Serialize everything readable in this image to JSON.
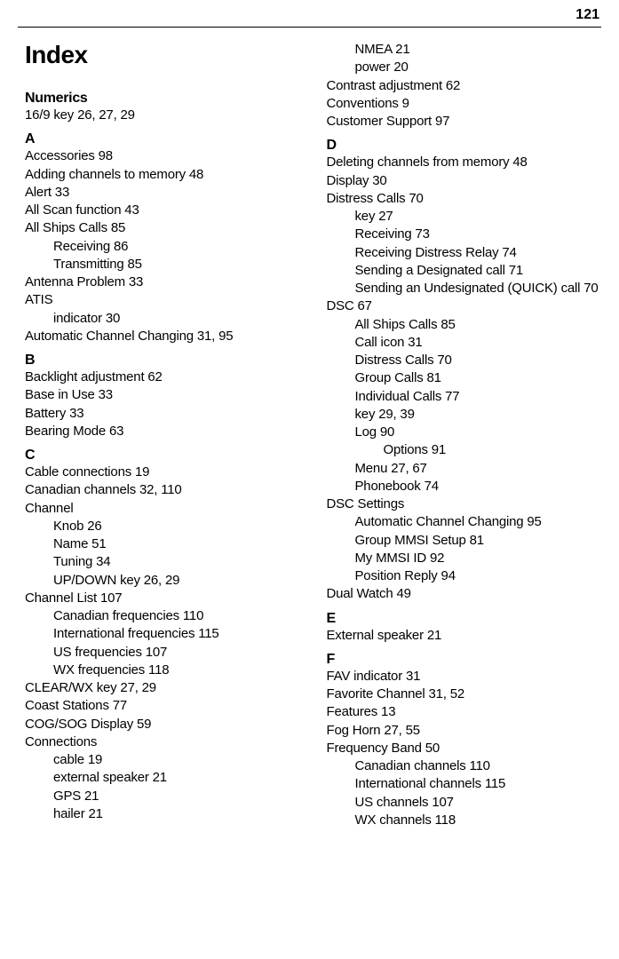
{
  "page_number": "121",
  "title": "Index",
  "left_column": [
    {
      "type": "title",
      "text": "Index"
    },
    {
      "type": "section",
      "text": "Numerics"
    },
    {
      "type": "entry",
      "indent": 0,
      "text": "16/9 key 26, 27, 29"
    },
    {
      "type": "section",
      "text": "A"
    },
    {
      "type": "entry",
      "indent": 0,
      "text": "Accessories 98"
    },
    {
      "type": "entry",
      "indent": 0,
      "text": "Adding channels to memory 48"
    },
    {
      "type": "entry",
      "indent": 0,
      "text": "Alert 33"
    },
    {
      "type": "entry",
      "indent": 0,
      "text": "All Scan function 43"
    },
    {
      "type": "entry",
      "indent": 0,
      "text": "All Ships Calls 85"
    },
    {
      "type": "entry",
      "indent": 1,
      "text": "Receiving 86"
    },
    {
      "type": "entry",
      "indent": 1,
      "text": "Transmitting 85"
    },
    {
      "type": "entry",
      "indent": 0,
      "text": "Antenna Problem 33"
    },
    {
      "type": "entry",
      "indent": 0,
      "text": "ATIS"
    },
    {
      "type": "entry",
      "indent": 1,
      "text": "indicator 30"
    },
    {
      "type": "entry",
      "indent": 0,
      "text": "Automatic Channel Changing 31, 95"
    },
    {
      "type": "section",
      "text": "B"
    },
    {
      "type": "entry",
      "indent": 0,
      "text": "Backlight adjustment 62"
    },
    {
      "type": "entry",
      "indent": 0,
      "text": "Base in Use 33"
    },
    {
      "type": "entry",
      "indent": 0,
      "text": "Battery 33"
    },
    {
      "type": "entry",
      "indent": 0,
      "text": "Bearing Mode 63"
    },
    {
      "type": "section",
      "text": "C"
    },
    {
      "type": "entry",
      "indent": 0,
      "text": "Cable connections 19"
    },
    {
      "type": "entry",
      "indent": 0,
      "text": "Canadian channels 32, 110"
    },
    {
      "type": "entry",
      "indent": 0,
      "text": "Channel"
    },
    {
      "type": "entry",
      "indent": 1,
      "text": "Knob 26"
    },
    {
      "type": "entry",
      "indent": 1,
      "text": "Name 51"
    },
    {
      "type": "entry",
      "indent": 1,
      "text": "Tuning 34"
    },
    {
      "type": "entry",
      "indent": 1,
      "text": "UP/DOWN key 26, 29"
    },
    {
      "type": "entry",
      "indent": 0,
      "text": "Channel List 107"
    },
    {
      "type": "entry",
      "indent": 1,
      "text": "Canadian frequencies 110"
    },
    {
      "type": "entry",
      "indent": 1,
      "text": "International frequencies 115"
    },
    {
      "type": "entry",
      "indent": 1,
      "text": "US frequencies 107"
    },
    {
      "type": "entry",
      "indent": 1,
      "text": "WX frequencies 118"
    },
    {
      "type": "entry",
      "indent": 0,
      "text": "CLEAR/WX key 27, 29"
    },
    {
      "type": "entry",
      "indent": 0,
      "text": "Coast Stations 77"
    },
    {
      "type": "entry",
      "indent": 0,
      "text": "COG/SOG Display 59"
    },
    {
      "type": "entry",
      "indent": 0,
      "text": "Connections"
    },
    {
      "type": "entry",
      "indent": 1,
      "text": "cable 19"
    },
    {
      "type": "entry",
      "indent": 1,
      "text": "external speaker 21"
    },
    {
      "type": "entry",
      "indent": 1,
      "text": "GPS 21"
    },
    {
      "type": "entry",
      "indent": 1,
      "text": "hailer 21"
    }
  ],
  "right_column": [
    {
      "type": "entry",
      "indent": 1,
      "text": "NMEA 21"
    },
    {
      "type": "entry",
      "indent": 1,
      "text": "power 20"
    },
    {
      "type": "entry",
      "indent": 0,
      "text": "Contrast adjustment 62"
    },
    {
      "type": "entry",
      "indent": 0,
      "text": "Conventions 9"
    },
    {
      "type": "entry",
      "indent": 0,
      "text": "Customer Support 97"
    },
    {
      "type": "section",
      "text": "D"
    },
    {
      "type": "entry",
      "indent": 0,
      "text": "Deleting channels from memory 48"
    },
    {
      "type": "entry",
      "indent": 0,
      "text": "Display 30"
    },
    {
      "type": "entry",
      "indent": 0,
      "text": "Distress Calls 70"
    },
    {
      "type": "entry",
      "indent": 1,
      "text": "key 27"
    },
    {
      "type": "entry",
      "indent": 1,
      "text": "Receiving 73"
    },
    {
      "type": "entry",
      "indent": 1,
      "text": "Receiving Distress Relay 74"
    },
    {
      "type": "entry",
      "indent": 1,
      "text": "Sending a Designated call 71"
    },
    {
      "type": "entry",
      "indent": 1,
      "text": "Sending an Undesignated (QUICK) call 70"
    },
    {
      "type": "entry",
      "indent": 0,
      "text": "DSC 67"
    },
    {
      "type": "entry",
      "indent": 1,
      "text": "All Ships Calls 85"
    },
    {
      "type": "entry",
      "indent": 1,
      "text": "Call icon 31"
    },
    {
      "type": "entry",
      "indent": 1,
      "text": "Distress Calls 70"
    },
    {
      "type": "entry",
      "indent": 1,
      "text": "Group Calls 81"
    },
    {
      "type": "entry",
      "indent": 1,
      "text": "Individual Calls 77"
    },
    {
      "type": "entry",
      "indent": 1,
      "text": "key 29, 39"
    },
    {
      "type": "entry",
      "indent": 1,
      "text": "Log 90"
    },
    {
      "type": "entry",
      "indent": 2,
      "text": "Options 91"
    },
    {
      "type": "entry",
      "indent": 1,
      "text": "Menu 27, 67"
    },
    {
      "type": "entry",
      "indent": 1,
      "text": "Phonebook 74"
    },
    {
      "type": "entry",
      "indent": 0,
      "text": "DSC Settings"
    },
    {
      "type": "entry",
      "indent": 1,
      "text": "Automatic Channel Changing 95"
    },
    {
      "type": "entry",
      "indent": 1,
      "text": "Group MMSI Setup 81"
    },
    {
      "type": "entry",
      "indent": 1,
      "text": "My MMSI ID 92"
    },
    {
      "type": "entry",
      "indent": 1,
      "text": "Position Reply 94"
    },
    {
      "type": "entry",
      "indent": 0,
      "text": "Dual Watch 49"
    },
    {
      "type": "section",
      "text": "E"
    },
    {
      "type": "entry",
      "indent": 0,
      "text": "External speaker 21"
    },
    {
      "type": "section",
      "text": "F"
    },
    {
      "type": "entry",
      "indent": 0,
      "text": "FAV indicator 31"
    },
    {
      "type": "entry",
      "indent": 0,
      "text": "Favorite Channel 31, 52"
    },
    {
      "type": "entry",
      "indent": 0,
      "text": "Features 13"
    },
    {
      "type": "entry",
      "indent": 0,
      "text": "Fog Horn 27, 55"
    },
    {
      "type": "entry",
      "indent": 0,
      "text": "Frequency Band 50"
    },
    {
      "type": "entry",
      "indent": 1,
      "text": "Canadian channels 110"
    },
    {
      "type": "entry",
      "indent": 1,
      "text": "International channels 115"
    },
    {
      "type": "entry",
      "indent": 1,
      "text": "US channels 107"
    },
    {
      "type": "entry",
      "indent": 1,
      "text": "WX channels 118"
    }
  ]
}
